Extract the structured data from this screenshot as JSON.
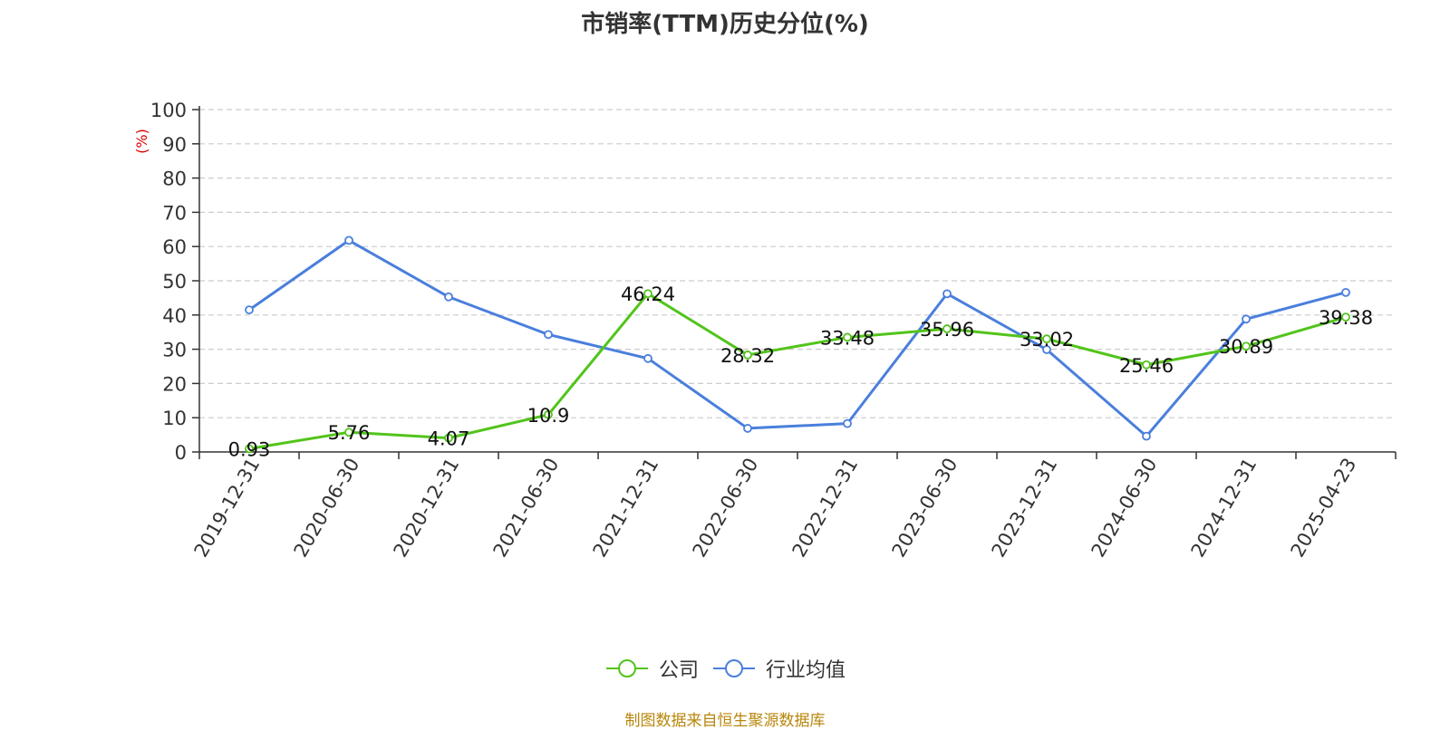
{
  "chart_data": {
    "type": "line",
    "title": "市销率(TTM)历史分位(%)",
    "ylabel": "(%)",
    "xlabel": "",
    "categories": [
      "2019-12-31",
      "2020-06-30",
      "2020-12-31",
      "2021-06-30",
      "2021-12-31",
      "2022-06-30",
      "2022-12-31",
      "2023-06-30",
      "2023-12-31",
      "2024-06-30",
      "2024-12-31",
      "2025-04-23"
    ],
    "ylim": [
      0,
      100
    ],
    "yticks": [
      0,
      10,
      20,
      30,
      40,
      50,
      60,
      70,
      80,
      90,
      100
    ],
    "grid": true,
    "legend_position": "bottom",
    "series": [
      {
        "name": "公司",
        "color": "#52c41a",
        "labeled": true,
        "values": [
          0.93,
          5.76,
          4.07,
          10.9,
          46.24,
          28.32,
          33.48,
          35.96,
          33.02,
          25.46,
          30.89,
          39.38
        ],
        "labels": [
          "0.93",
          "5.76",
          "4.07",
          "10.9",
          "46.24",
          "28.32",
          "33.48",
          "35.96",
          "33.02",
          "25.46",
          "30.89",
          "39.38"
        ]
      },
      {
        "name": "行业均值",
        "color": "#4a7fdc",
        "labeled": false,
        "values": [
          41.5,
          61.8,
          45.3,
          34.3,
          27.3,
          6.9,
          8.3,
          46.2,
          29.9,
          4.6,
          38.8,
          46.6
        ]
      }
    ]
  },
  "source": "制图数据来自恒生聚源数据库"
}
